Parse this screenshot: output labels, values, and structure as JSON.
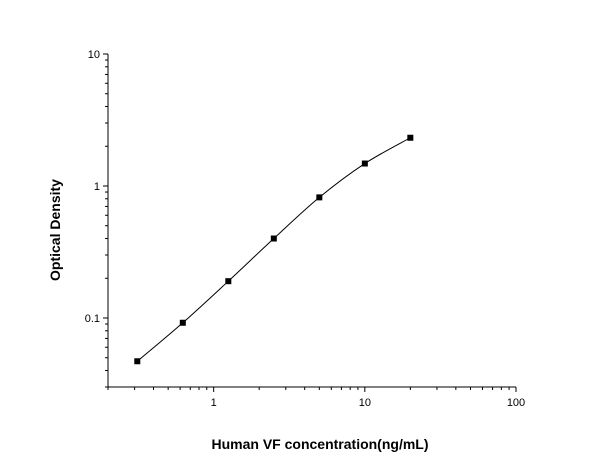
{
  "chart_data": {
    "type": "scatter",
    "title": "",
    "xlabel": "Human VF concentration(ng/mL)",
    "ylabel": "Optical Density",
    "xscale": "log",
    "yscale": "log",
    "xlim": [
      0.2,
      100
    ],
    "ylim": [
      0.03,
      10
    ],
    "x_ticks": [
      {
        "value": 1,
        "label": "1"
      },
      {
        "value": 10,
        "label": "10"
      },
      {
        "value": 100,
        "label": "100"
      }
    ],
    "y_ticks": [
      {
        "value": 0.1,
        "label": "0.1"
      },
      {
        "value": 1,
        "label": "1"
      },
      {
        "value": 10,
        "label": "10"
      }
    ],
    "grid": false,
    "legend": "none",
    "marker_color": "#000000",
    "series": [
      {
        "x": [
          0.3125,
          0.625,
          1.25,
          2.5,
          5,
          10,
          20
        ],
        "y": [
          0.047,
          0.092,
          0.19,
          0.4,
          0.82,
          1.48,
          2.32
        ],
        "fit_curve": true
      }
    ]
  }
}
